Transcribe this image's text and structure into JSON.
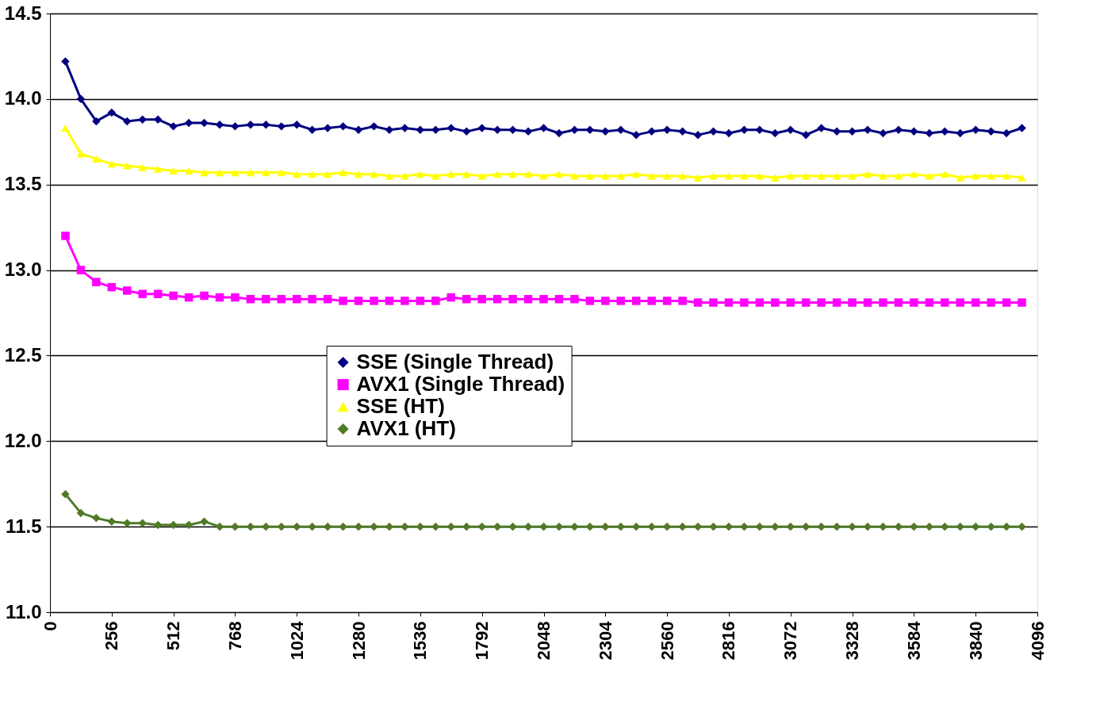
{
  "chart_data": {
    "type": "line",
    "x": [
      64,
      128,
      192,
      256,
      320,
      384,
      448,
      512,
      576,
      640,
      704,
      768,
      832,
      896,
      960,
      1024,
      1088,
      1152,
      1216,
      1280,
      1344,
      1408,
      1472,
      1536,
      1600,
      1664,
      1728,
      1792,
      1856,
      1920,
      1984,
      2048,
      2112,
      2176,
      2240,
      2304,
      2368,
      2432,
      2496,
      2560,
      2624,
      2688,
      2752,
      2816,
      2880,
      2944,
      3008,
      3072,
      3136,
      3200,
      3264,
      3328,
      3392,
      3456,
      3520,
      3584,
      3648,
      3712,
      3776,
      3840,
      3904,
      3968,
      4032
    ],
    "series": [
      {
        "name": "SSE (Single Thread)",
        "color": "#000080",
        "marker": "diamond",
        "values": [
          14.22,
          14.0,
          13.87,
          13.92,
          13.87,
          13.88,
          13.88,
          13.84,
          13.86,
          13.86,
          13.85,
          13.84,
          13.85,
          13.85,
          13.84,
          13.85,
          13.82,
          13.83,
          13.84,
          13.82,
          13.84,
          13.82,
          13.83,
          13.82,
          13.82,
          13.83,
          13.81,
          13.83,
          13.82,
          13.82,
          13.81,
          13.83,
          13.8,
          13.82,
          13.82,
          13.81,
          13.82,
          13.79,
          13.81,
          13.82,
          13.81,
          13.79,
          13.81,
          13.8,
          13.82,
          13.82,
          13.8,
          13.82,
          13.79,
          13.83,
          13.81,
          13.81,
          13.82,
          13.8,
          13.82,
          13.81,
          13.8,
          13.81,
          13.8,
          13.82,
          13.81,
          13.8,
          13.83
        ]
      },
      {
        "name": "AVX1 (Single Thread)",
        "color": "#ff00ff",
        "marker": "square",
        "values": [
          13.2,
          13.0,
          12.93,
          12.9,
          12.88,
          12.86,
          12.86,
          12.85,
          12.84,
          12.85,
          12.84,
          12.84,
          12.83,
          12.83,
          12.83,
          12.83,
          12.83,
          12.83,
          12.82,
          12.82,
          12.82,
          12.82,
          12.82,
          12.82,
          12.82,
          12.84,
          12.83,
          12.83,
          12.83,
          12.83,
          12.83,
          12.83,
          12.83,
          12.83,
          12.82,
          12.82,
          12.82,
          12.82,
          12.82,
          12.82,
          12.82,
          12.81,
          12.81,
          12.81,
          12.81,
          12.81,
          12.81,
          12.81,
          12.81,
          12.81,
          12.81,
          12.81,
          12.81,
          12.81,
          12.81,
          12.81,
          12.81,
          12.81,
          12.81,
          12.81,
          12.81,
          12.81,
          12.81
        ]
      },
      {
        "name": "SSE (HT)",
        "color": "#ffff00",
        "marker": "triangle",
        "values": [
          13.83,
          13.68,
          13.65,
          13.62,
          13.61,
          13.6,
          13.59,
          13.58,
          13.58,
          13.57,
          13.57,
          13.57,
          13.57,
          13.57,
          13.57,
          13.56,
          13.56,
          13.56,
          13.57,
          13.56,
          13.56,
          13.55,
          13.55,
          13.56,
          13.55,
          13.56,
          13.56,
          13.55,
          13.56,
          13.56,
          13.56,
          13.55,
          13.56,
          13.55,
          13.55,
          13.55,
          13.55,
          13.56,
          13.55,
          13.55,
          13.55,
          13.54,
          13.55,
          13.55,
          13.55,
          13.55,
          13.54,
          13.55,
          13.55,
          13.55,
          13.55,
          13.55,
          13.56,
          13.55,
          13.55,
          13.56,
          13.55,
          13.56,
          13.54,
          13.55,
          13.55,
          13.55,
          13.54
        ]
      },
      {
        "name": "AVX1 (HT)",
        "color": "#4f7a28",
        "marker": "diamond",
        "values": [
          11.69,
          11.58,
          11.55,
          11.53,
          11.52,
          11.52,
          11.51,
          11.51,
          11.51,
          11.53,
          11.5,
          11.5,
          11.5,
          11.5,
          11.5,
          11.5,
          11.5,
          11.5,
          11.5,
          11.5,
          11.5,
          11.5,
          11.5,
          11.5,
          11.5,
          11.5,
          11.5,
          11.5,
          11.5,
          11.5,
          11.5,
          11.5,
          11.5,
          11.5,
          11.5,
          11.5,
          11.5,
          11.5,
          11.5,
          11.5,
          11.5,
          11.5,
          11.5,
          11.5,
          11.5,
          11.5,
          11.5,
          11.5,
          11.5,
          11.5,
          11.5,
          11.5,
          11.5,
          11.5,
          11.5,
          11.5,
          11.5,
          11.5,
          11.5,
          11.5,
          11.5,
          11.5,
          11.5
        ]
      }
    ],
    "xlim": [
      0,
      4096
    ],
    "xticks": [
      0,
      256,
      512,
      768,
      1024,
      1280,
      1536,
      1792,
      2048,
      2304,
      2560,
      2816,
      3072,
      3328,
      3584,
      3840,
      4096
    ],
    "ylim": [
      11,
      14.5
    ],
    "yticks": [
      {
        "value": 11,
        "label": "11.0"
      },
      {
        "value": 11.5,
        "label": "11.5"
      },
      {
        "value": 12,
        "label": "12.0"
      },
      {
        "value": 12.5,
        "label": "12.5"
      },
      {
        "value": 13,
        "label": "13.0"
      },
      {
        "value": 13.5,
        "label": "13.5"
      },
      {
        "value": 14,
        "label": "14.0"
      },
      {
        "value": 14.5,
        "label": "14.5"
      }
    ],
    "grid": "y",
    "legend": "center",
    "line_style": "solid"
  }
}
